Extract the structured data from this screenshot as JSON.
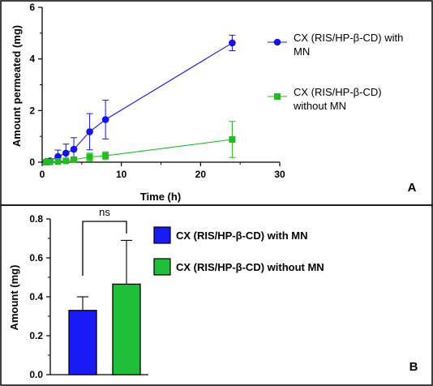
{
  "chart_data": [
    {
      "panel_label": "A",
      "type": "line",
      "xlabel": "Time (h)",
      "ylabel": "Amount permeated (mg)",
      "xlim": [
        0,
        30
      ],
      "ylim": [
        0,
        6
      ],
      "xticks": [
        0,
        10,
        20,
        30
      ],
      "yticks": [
        0,
        2,
        4,
        6
      ],
      "legend_placement": "right",
      "series": [
        {
          "name": "CX (RIS/HP-β-CD) with MN",
          "name_lines": [
            "CX (RIS/HP-β-CD) with",
            "MN"
          ],
          "color": "#1414e6",
          "marker": "circle",
          "x": [
            0.5,
            1,
            2,
            3,
            4,
            6,
            8,
            24
          ],
          "y": [
            0.02,
            0.05,
            0.22,
            0.35,
            0.5,
            1.18,
            1.65,
            4.62
          ],
          "err": [
            0.03,
            0.06,
            0.25,
            0.35,
            0.45,
            0.7,
            0.75,
            0.3
          ]
        },
        {
          "name": "CX (RIS/HP-β-CD) without MN",
          "name_lines": [
            "CX (RIS/HP-β-CD)",
            "without MN"
          ],
          "color": "#22bb22",
          "marker": "square",
          "x": [
            0.5,
            1,
            2,
            3,
            4,
            6,
            8,
            24
          ],
          "y": [
            0.0,
            0.01,
            0.03,
            0.05,
            0.1,
            0.2,
            0.25,
            0.88
          ],
          "err": [
            0.01,
            0.01,
            0.03,
            0.05,
            0.08,
            0.15,
            0.15,
            0.7
          ]
        }
      ]
    },
    {
      "panel_label": "B",
      "type": "bar",
      "xlabel": "",
      "ylabel": "Amount (mg)",
      "ylim": [
        0,
        0.8
      ],
      "yticks": [
        "0.0",
        "0.2",
        "0.4",
        "0.6",
        "0.8"
      ],
      "significance_label": "ns",
      "legend_placement": "right",
      "categories": [
        "CX (RIS/HP-β-CD) with MN",
        "CX (RIS/HP-β-CD) without MN"
      ],
      "values": [
        0.33,
        0.465
      ],
      "errors": [
        0.07,
        0.225
      ],
      "colors": [
        "#1a1af5",
        "#1fbf3a"
      ]
    }
  ]
}
